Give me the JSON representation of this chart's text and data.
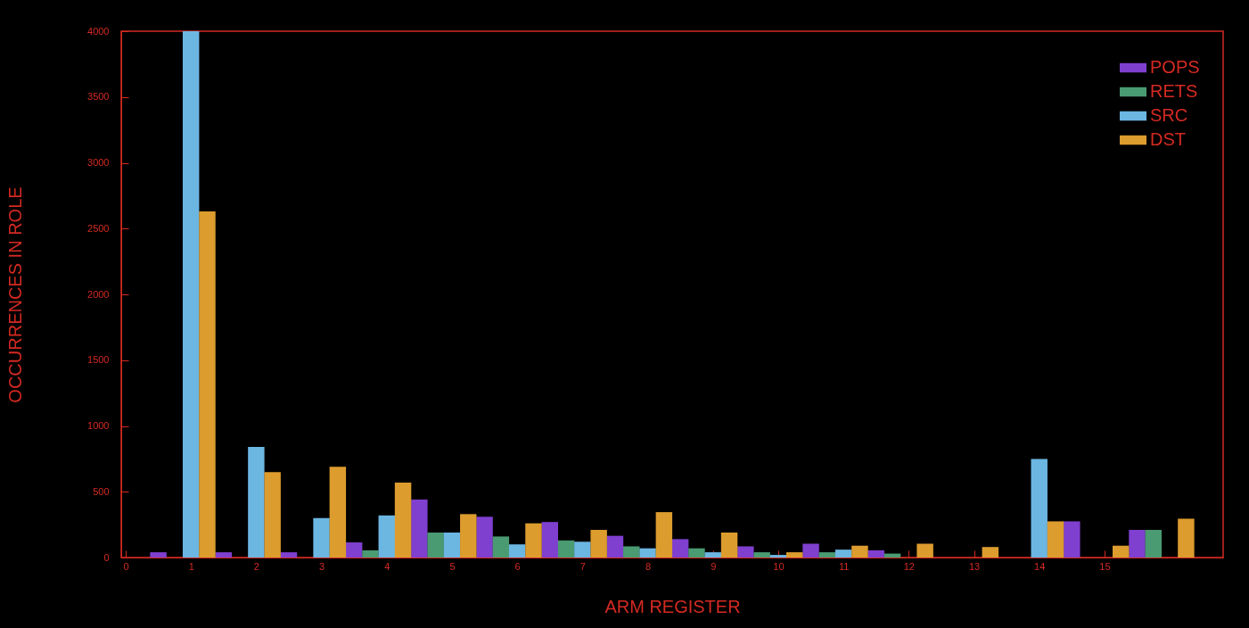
{
  "chart_data": {
    "type": "bar",
    "xlabel": "ARM REGISTER",
    "ylabel": "OCCURRENCES IN ROLE",
    "xlim": [
      0,
      16.75
    ],
    "xticks": [
      0,
      1,
      2,
      3,
      4,
      5,
      6,
      7,
      8,
      9,
      10,
      11,
      12,
      13,
      14,
      15
    ],
    "ylim": [
      0,
      4000
    ],
    "yticks": [
      0,
      500,
      1000,
      1500,
      2000,
      2500,
      3000,
      3500,
      4000
    ],
    "grid": false,
    "legend": "top right",
    "series": [
      {
        "name": "POPS",
        "color": "#7f3fcf",
        "x": [
          0.5,
          1.5,
          2.5,
          3.5,
          4.5,
          5.5,
          6.5,
          7.5,
          8.5,
          9.5,
          10.5,
          11.5,
          12.5,
          13.5,
          14.5,
          15.5
        ],
        "values": [
          40,
          40,
          40,
          115,
          440,
          310,
          270,
          165,
          140,
          85,
          105,
          55,
          0,
          0,
          275,
          210
        ]
      },
      {
        "name": "RETS",
        "color": "#4a9a72",
        "x": [
          0.75,
          1.75,
          2.75,
          3.75,
          4.75,
          5.75,
          6.75,
          7.75,
          8.75,
          9.75,
          10.75,
          11.75,
          12.75,
          13.75,
          14.75,
          15.75
        ],
        "values": [
          0,
          0,
          0,
          55,
          190,
          160,
          130,
          85,
          70,
          40,
          40,
          30,
          0,
          0,
          0,
          210
        ]
      },
      {
        "name": "SRC",
        "color": "#6cb6e2",
        "x": [
          1,
          2,
          3,
          4,
          5,
          6,
          7,
          8,
          9,
          10,
          11,
          12,
          13,
          14,
          15,
          16
        ],
        "values": [
          4000,
          840,
          300,
          320,
          190,
          100,
          120,
          70,
          40,
          20,
          60,
          0,
          0,
          750,
          0,
          0
        ]
      },
      {
        "name": "DST",
        "color": "#dc9c2e",
        "x": [
          1.25,
          2.25,
          3.25,
          4.25,
          5.25,
          6.25,
          7.25,
          8.25,
          9.25,
          10.25,
          11.25,
          12.25,
          13.25,
          14.25,
          15.25,
          16.25
        ],
        "values": [
          2630,
          650,
          690,
          570,
          330,
          260,
          210,
          345,
          190,
          40,
          90,
          105,
          80,
          275,
          90,
          295
        ]
      }
    ]
  }
}
